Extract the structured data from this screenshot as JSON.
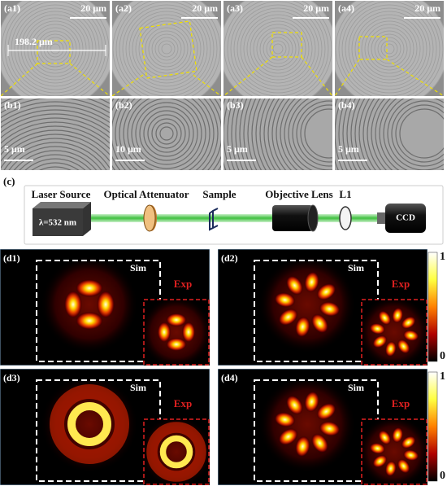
{
  "panels_a": [
    {
      "label": "(a1)",
      "scale": "20 μm"
    },
    {
      "label": "(a2)",
      "scale": "20 μm"
    },
    {
      "label": "(a3)",
      "scale": "20 μm"
    },
    {
      "label": "(a4)",
      "scale": "20 μm"
    }
  ],
  "measure": "198.2 μm",
  "panels_b": [
    {
      "label": "(b1)",
      "scale": "5 μm"
    },
    {
      "label": "(b2)",
      "scale": "10 μm"
    },
    {
      "label": "(b3)",
      "scale": "5 μm"
    },
    {
      "label": "(b4)",
      "scale": "5 μm"
    }
  ],
  "setup": {
    "label": "(c)",
    "laser": "Laser Source",
    "wavelength": "λ=532 nm",
    "attenuator": "Optical Attenuator",
    "sample": "Sample",
    "objective": "Objective Lens",
    "lens": "L1",
    "camera": "CCD"
  },
  "panels_d": [
    {
      "label": "(d1)",
      "sim": "Sim",
      "exp": "Exp"
    },
    {
      "label": "(d2)",
      "sim": "Sim",
      "exp": "Exp"
    },
    {
      "label": "(d3)",
      "sim": "Sim",
      "exp": "Exp"
    },
    {
      "label": "(d4)",
      "sim": "Sim",
      "exp": "Exp"
    }
  ],
  "colorbars": [
    {
      "max": 1,
      "min": 0
    },
    {
      "max": 1,
      "min": 0
    }
  ]
}
